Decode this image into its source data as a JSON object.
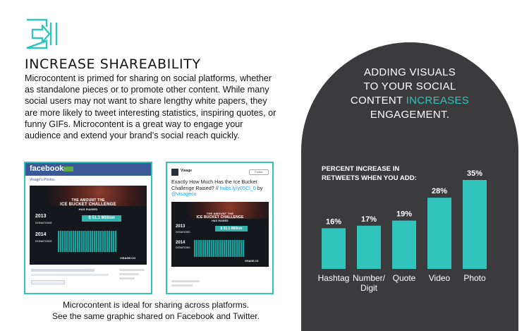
{
  "left": {
    "heading": "INCREASE SHAREABILITY",
    "body": "Microcontent is primed for sharing on social platforms, whether as standalone pieces or to promote other content. While many social users may not want to share lengthy white papers, they are more likely to tweet interesting statistics, inspiring quotes, or funny GIFs. Microcontent is a great way to engage your audience and extend your brand’s social reach quickly.",
    "caption_line1": "Microcontent is ideal for sharing across platforms.",
    "caption_line2": "See the same graphic shared on Facebook and Twitter."
  },
  "facebook_post": {
    "logo": "facebook",
    "page_label": "Visage's Photos",
    "infographic": {
      "line1": "THE AMOUNT THE",
      "line2": "ICE BUCKET CHALLENGE",
      "line3": "HAS RAISED",
      "amount": "$ 51.1 Million",
      "year_a": "2013",
      "year_b": "2014",
      "donations_label": "DONATIONS",
      "brand": "VISAGE.CO"
    }
  },
  "twitter_post": {
    "account": "Visage",
    "follow_label": "Follow",
    "tweet_text": "Exactly How Much Has the Ice Bucket Challenge Raised? // ",
    "tweet_link": "hubs.ly/y05Cl_0",
    "tweet_by": " by",
    "tweet_handle": "@visageco",
    "infographic": {
      "line1": "THE AMOUNT THE",
      "line2": "ICE BUCKET CHALLENGE",
      "line3": "HAS RAISED",
      "amount": "$ 51.1 Million",
      "year_a": "2013",
      "year_b": "2014",
      "donations_label": "DONATIONS",
      "brand": "VISAGE.CO"
    }
  },
  "right": {
    "title_line1": "ADDING VISUALS",
    "title_line2": "TO YOUR SOCIAL",
    "title_line3_a": "CONTENT ",
    "title_line3_highlight": "INCREASES",
    "title_line4": "ENGAGEMENT.",
    "chart_title_line1": "PERCENT INCREASE IN",
    "chart_title_line2": "RETWEETS WHEN YOU ADD:"
  },
  "colors": {
    "teal": "#31c4bd",
    "arch_bg": "#3b3b3d",
    "facebook_blue": "#3b5998"
  },
  "chart_data": {
    "type": "bar",
    "title": "PERCENT INCREASE IN RETWEETS WHEN YOU ADD:",
    "categories": [
      "Hashtag",
      "Number/ Digit",
      "Quote",
      "Video",
      "Photo"
    ],
    "values": [
      16,
      17,
      19,
      28,
      35
    ],
    "value_labels": [
      "16%",
      "17%",
      "19%",
      "28%",
      "35%"
    ],
    "unit": "%",
    "ylim": [
      0,
      35
    ],
    "grid": false,
    "legend": "none"
  }
}
